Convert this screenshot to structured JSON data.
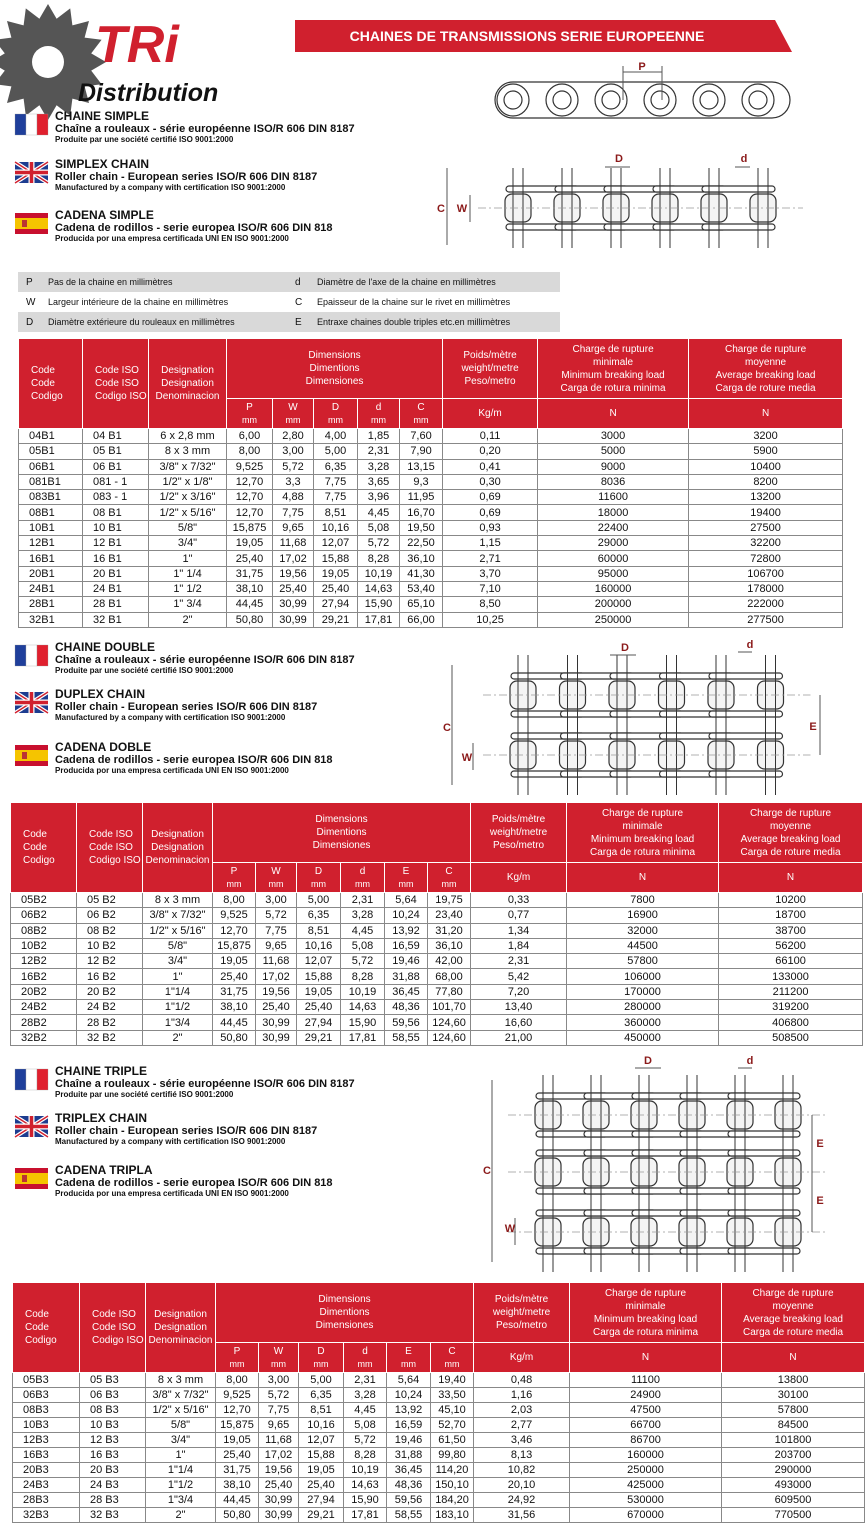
{
  "header": {
    "logo_mark": "TRi",
    "logo_sub": "Distribution",
    "banner": "CHAINES  DE TRANSMISSIONS SERIE EUROPEENNE"
  },
  "legend": [
    {
      "key": "P",
      "text": "Pas de la chaine en millimètres"
    },
    {
      "key": "d",
      "text": "Diamètre de l'axe de la chaine en millimètres"
    },
    {
      "key": "W",
      "text": "Largeur intérieure de la chaine en millimètres"
    },
    {
      "key": "C",
      "text": "Epaisseur de la chaine sur le rivet en millimètres"
    },
    {
      "key": "D",
      "text": "Diamètre extérieure du rouleaux en millimètres"
    },
    {
      "key": "E",
      "text": "Entraxe  chaines double triples etc.en millimètres"
    }
  ],
  "sections": [
    {
      "blocks": [
        {
          "title": "CHAINE SIMPLE",
          "subtitle": "Chaîne a rouleaux - série européenne ISO/R 606 DIN 8187",
          "note": "Produite par une société certifié ISO 9001:2000"
        },
        {
          "title": "SIMPLEX CHAIN",
          "subtitle": "Roller chain - European series ISO/R 606 DIN 8187",
          "note": "Manufactured by a company with certification ISO 9001:2000"
        },
        {
          "title": "CADENA SIMPLE",
          "subtitle": "Cadena de rodillos - serie europea ISO/R 606 DIN 818",
          "note": "Producida por una empresa certificada UNI EN ISO 9001:2000"
        }
      ],
      "diagram_labels": [
        "P",
        "D",
        "d",
        "C",
        "W"
      ]
    },
    {
      "blocks": [
        {
          "title": "CHAINE DOUBLE",
          "subtitle": "Chaîne a rouleaux - série européenne ISO/R 606 DIN 8187",
          "note": "Produite par une société certifié ISO 9001:2000"
        },
        {
          "title": "DUPLEX CHAIN",
          "subtitle": "Roller chain - European series ISO/R 606 DIN 8187",
          "note": "Manufactured by a company with certification ISO 9001:2000"
        },
        {
          "title": "CADENA DOBLE",
          "subtitle": "Cadena de rodillos - serie europea ISO/R 606 DIN 818",
          "note": "Producida por una empresa certificada UNI EN ISO 9001:2000"
        }
      ],
      "diagram_labels": [
        "D",
        "d",
        "C",
        "W",
        "E"
      ]
    },
    {
      "blocks": [
        {
          "title": "CHAINE TRIPLE",
          "subtitle": "Chaîne a rouleaux - série européenne ISO/R 606 DIN 8187",
          "note": "Produite par une société certifié ISO 9001:2000"
        },
        {
          "title": "TRIPLEX CHAIN",
          "subtitle": "Roller chain - European series ISO/R 606 DIN 8187",
          "note": "Manufactured by a company with certification ISO 9001:2000"
        },
        {
          "title": "CADENA TRIPLA",
          "subtitle": "Cadena de rodillos - serie europea ISO/R 606 DIN 818",
          "note": "Producida por una empresa certificada UNI EN ISO 9001:2000"
        }
      ],
      "diagram_labels": [
        "D",
        "d",
        "E",
        "E",
        "C",
        "W"
      ]
    }
  ],
  "tables": [
    {
      "head": {
        "code": [
          "Code",
          "Code",
          "Codigo"
        ],
        "iso": [
          "Code ISO",
          "Code ISO",
          "Codigo ISO"
        ],
        "designation": [
          "Designation",
          "Designation",
          "Denominacion"
        ],
        "dimensions": [
          "Dimensions",
          "Dimentions",
          "Dimensiones"
        ],
        "dims": [
          {
            "name": "P",
            "unit": "mm"
          },
          {
            "name": "W",
            "unit": "mm"
          },
          {
            "name": "D",
            "unit": "mm"
          },
          {
            "name": "d",
            "unit": "mm"
          },
          {
            "name": "C",
            "unit": "mm"
          }
        ],
        "weight": [
          "Poids/mètre",
          "weight/metre",
          "Peso/metro"
        ],
        "weight_unit": "Kg/m",
        "min": [
          "Charge de rupture",
          "minimale",
          "Minimum breaking load",
          "Carga de rotura minima"
        ],
        "min_unit": "N",
        "avg": [
          "Charge de rupture",
          "moyenne",
          "Average breaking load",
          "Carga de roture media"
        ],
        "avg_unit": "N"
      },
      "rows": [
        [
          "04B1",
          "04 B1",
          "6 x 2,8 mm",
          "6,00",
          "2,80",
          "4,00",
          "1,85",
          "7,60",
          "0,11",
          "3000",
          "3200"
        ],
        [
          "05B1",
          "05 B1",
          "8 x 3 mm",
          "8,00",
          "3,00",
          "5,00",
          "2,31",
          "7,90",
          "0,20",
          "5000",
          "5900"
        ],
        [
          "06B1",
          "06 B1",
          "3/8\" x 7/32\"",
          "9,525",
          "5,72",
          "6,35",
          "3,28",
          "13,15",
          "0,41",
          "9000",
          "10400"
        ],
        [
          "081B1",
          "081 - 1",
          "1/2\" x 1/8\"",
          "12,70",
          "3,3",
          "7,75",
          "3,65",
          "9,3",
          "0,30",
          "8036",
          "8200"
        ],
        [
          "083B1",
          "083 - 1",
          "1/2\" x 3/16\"",
          "12,70",
          "4,88",
          "7,75",
          "3,96",
          "11,95",
          "0,69",
          "11600",
          "13200"
        ],
        [
          "08B1",
          "08 B1",
          "1/2\" x 5/16\"",
          "12,70",
          "7,75",
          "8,51",
          "4,45",
          "16,70",
          "0,69",
          "18000",
          "19400"
        ],
        [
          "10B1",
          "10 B1",
          "5/8\"",
          "15,875",
          "9,65",
          "10,16",
          "5,08",
          "19,50",
          "0,93",
          "22400",
          "27500"
        ],
        [
          "12B1",
          "12 B1",
          "3/4\"",
          "19,05",
          "11,68",
          "12,07",
          "5,72",
          "22,50",
          "1,15",
          "29000",
          "32200"
        ],
        [
          "16B1",
          "16 B1",
          "1\"",
          "25,40",
          "17,02",
          "15,88",
          "8,28",
          "36,10",
          "2,71",
          "60000",
          "72800"
        ],
        [
          "20B1",
          "20 B1",
          "1\" 1/4",
          "31,75",
          "19,56",
          "19,05",
          "10,19",
          "41,30",
          "3,70",
          "95000",
          "106700"
        ],
        [
          "24B1",
          "24 B1",
          "1\" 1/2",
          "38,10",
          "25,40",
          "25,40",
          "14,63",
          "53,40",
          "7,10",
          "160000",
          "178000"
        ],
        [
          "28B1",
          "28 B1",
          "1\" 3/4",
          "44,45",
          "30,99",
          "27,94",
          "15,90",
          "65,10",
          "8,50",
          "200000",
          "222000"
        ],
        [
          "32B1",
          "32 B1",
          "2\"",
          "50,80",
          "30,99",
          "29,21",
          "17,81",
          "66,00",
          "10,25",
          "250000",
          "277500"
        ]
      ]
    },
    {
      "head": {
        "code": [
          "Code",
          "Code",
          "Codigo"
        ],
        "iso": [
          "Code ISO",
          "Code ISO",
          "Codigo ISO"
        ],
        "designation": [
          "Designation",
          "Designation",
          "Denominacion"
        ],
        "dimensions": [
          "Dimensions",
          "Dimentions",
          "Dimensiones"
        ],
        "dims": [
          {
            "name": "P",
            "unit": "mm"
          },
          {
            "name": "W",
            "unit": "mm"
          },
          {
            "name": "D",
            "unit": "mm"
          },
          {
            "name": "d",
            "unit": "mm"
          },
          {
            "name": "E",
            "unit": "mm"
          },
          {
            "name": "C",
            "unit": "mm"
          }
        ],
        "weight": [
          "Poids/mètre",
          "weight/metre",
          "Peso/metro"
        ],
        "weight_unit": "Kg/m",
        "min": [
          "Charge de rupture",
          "minimale",
          "Minimum breaking load",
          "Carga de rotura minima"
        ],
        "min_unit": "N",
        "avg": [
          "Charge de rupture",
          "moyenne",
          "Average breaking load",
          "Carga de roture media"
        ],
        "avg_unit": "N"
      },
      "rows": [
        [
          "05B2",
          "05 B2",
          "8 x 3 mm",
          "8,00",
          "3,00",
          "5,00",
          "2,31",
          "5,64",
          "19,75",
          "0,33",
          "7800",
          "10200"
        ],
        [
          "06B2",
          "06 B2",
          "3/8\" x 7/32\"",
          "9,525",
          "5,72",
          "6,35",
          "3,28",
          "10,24",
          "23,40",
          "0,77",
          "16900",
          "18700"
        ],
        [
          "08B2",
          "08 B2",
          "1/2\" x 5/16\"",
          "12,70",
          "7,75",
          "8,51",
          "4,45",
          "13,92",
          "31,20",
          "1,34",
          "32000",
          "38700"
        ],
        [
          "10B2",
          "10 B2",
          "5/8\"",
          "15,875",
          "9,65",
          "10,16",
          "5,08",
          "16,59",
          "36,10",
          "1,84",
          "44500",
          "56200"
        ],
        [
          "12B2",
          "12 B2",
          "3/4\"",
          "19,05",
          "11,68",
          "12,07",
          "5,72",
          "19,46",
          "42,00",
          "2,31",
          "57800",
          "66100"
        ],
        [
          "16B2",
          "16 B2",
          "1\"",
          "25,40",
          "17,02",
          "15,88",
          "8,28",
          "31,88",
          "68,00",
          "5,42",
          "106000",
          "133000"
        ],
        [
          "20B2",
          "20 B2",
          "1\"1/4",
          "31,75",
          "19,56",
          "19,05",
          "10,19",
          "36,45",
          "77,80",
          "7,20",
          "170000",
          "211200"
        ],
        [
          "24B2",
          "24 B2",
          "1\"1/2",
          "38,10",
          "25,40",
          "25,40",
          "14,63",
          "48,36",
          "101,70",
          "13,40",
          "280000",
          "319200"
        ],
        [
          "28B2",
          "28 B2",
          "1\"3/4",
          "44,45",
          "30,99",
          "27,94",
          "15,90",
          "59,56",
          "124,60",
          "16,60",
          "360000",
          "406800"
        ],
        [
          "32B2",
          "32 B2",
          "2\"",
          "50,80",
          "30,99",
          "29,21",
          "17,81",
          "58,55",
          "124,60",
          "21,00",
          "450000",
          "508500"
        ]
      ]
    },
    {
      "head": {
        "code": [
          "Code",
          "Code",
          "Codigo"
        ],
        "iso": [
          "Code ISO",
          "Code ISO",
          "Codigo ISO"
        ],
        "designation": [
          "Designation",
          "Designation",
          "Denominacion"
        ],
        "dimensions": [
          "Dimensions",
          "Dimentions",
          "Dimensiones"
        ],
        "dims": [
          {
            "name": "P",
            "unit": "mm"
          },
          {
            "name": "W",
            "unit": "mm"
          },
          {
            "name": "D",
            "unit": "mm"
          },
          {
            "name": "d",
            "unit": "mm"
          },
          {
            "name": "E",
            "unit": "mm"
          },
          {
            "name": "C",
            "unit": "mm"
          }
        ],
        "weight": [
          "Poids/mètre",
          "weight/metre",
          "Peso/metro"
        ],
        "weight_unit": "Kg/m",
        "min": [
          "Charge de rupture",
          "minimale",
          "Minimum breaking load",
          "Carga de rotura minima"
        ],
        "min_unit": "N",
        "avg": [
          "Charge de rupture",
          "moyenne",
          "Average breaking load",
          "Carga de roture media"
        ],
        "avg_unit": "N"
      },
      "rows": [
        [
          "05B3",
          "05 B3",
          "8 x 3 mm",
          "8,00",
          "3,00",
          "5,00",
          "2,31",
          "5,64",
          "19,40",
          "0,48",
          "11100",
          "13800"
        ],
        [
          "06B3",
          "06 B3",
          "3/8\" x 7/32\"",
          "9,525",
          "5,72",
          "6,35",
          "3,28",
          "10,24",
          "33,50",
          "1,16",
          "24900",
          "30100"
        ],
        [
          "08B3",
          "08 B3",
          "1/2\" x 5/16\"",
          "12,70",
          "7,75",
          "8,51",
          "4,45",
          "13,92",
          "45,10",
          "2,03",
          "47500",
          "57800"
        ],
        [
          "10B3",
          "10 B3",
          "5/8\"",
          "15,875",
          "9,65",
          "10,16",
          "5,08",
          "16,59",
          "52,70",
          "2,77",
          "66700",
          "84500"
        ],
        [
          "12B3",
          "12 B3",
          "3/4\"",
          "19,05",
          "11,68",
          "12,07",
          "5,72",
          "19,46",
          "61,50",
          "3,46",
          "86700",
          "101800"
        ],
        [
          "16B3",
          "16 B3",
          "1\"",
          "25,40",
          "17,02",
          "15,88",
          "8,28",
          "31,88",
          "99,80",
          "8,13",
          "160000",
          "203700"
        ],
        [
          "20B3",
          "20 B3",
          "1\"1/4",
          "31,75",
          "19,56",
          "19,05",
          "10,19",
          "36,45",
          "114,20",
          "10,82",
          "250000",
          "290000"
        ],
        [
          "24B3",
          "24 B3",
          "1\"1/2",
          "38,10",
          "25,40",
          "25,40",
          "14,63",
          "48,36",
          "150,10",
          "20,10",
          "425000",
          "493000"
        ],
        [
          "28B3",
          "28 B3",
          "1\"3/4",
          "44,45",
          "30,99",
          "27,94",
          "15,90",
          "59,56",
          "184,20",
          "24,92",
          "530000",
          "609500"
        ],
        [
          "32B3",
          "32 B3",
          "2\"",
          "50,80",
          "30,99",
          "29,21",
          "17,81",
          "58,55",
          "183,10",
          "31,56",
          "670000",
          "770500"
        ]
      ]
    }
  ]
}
